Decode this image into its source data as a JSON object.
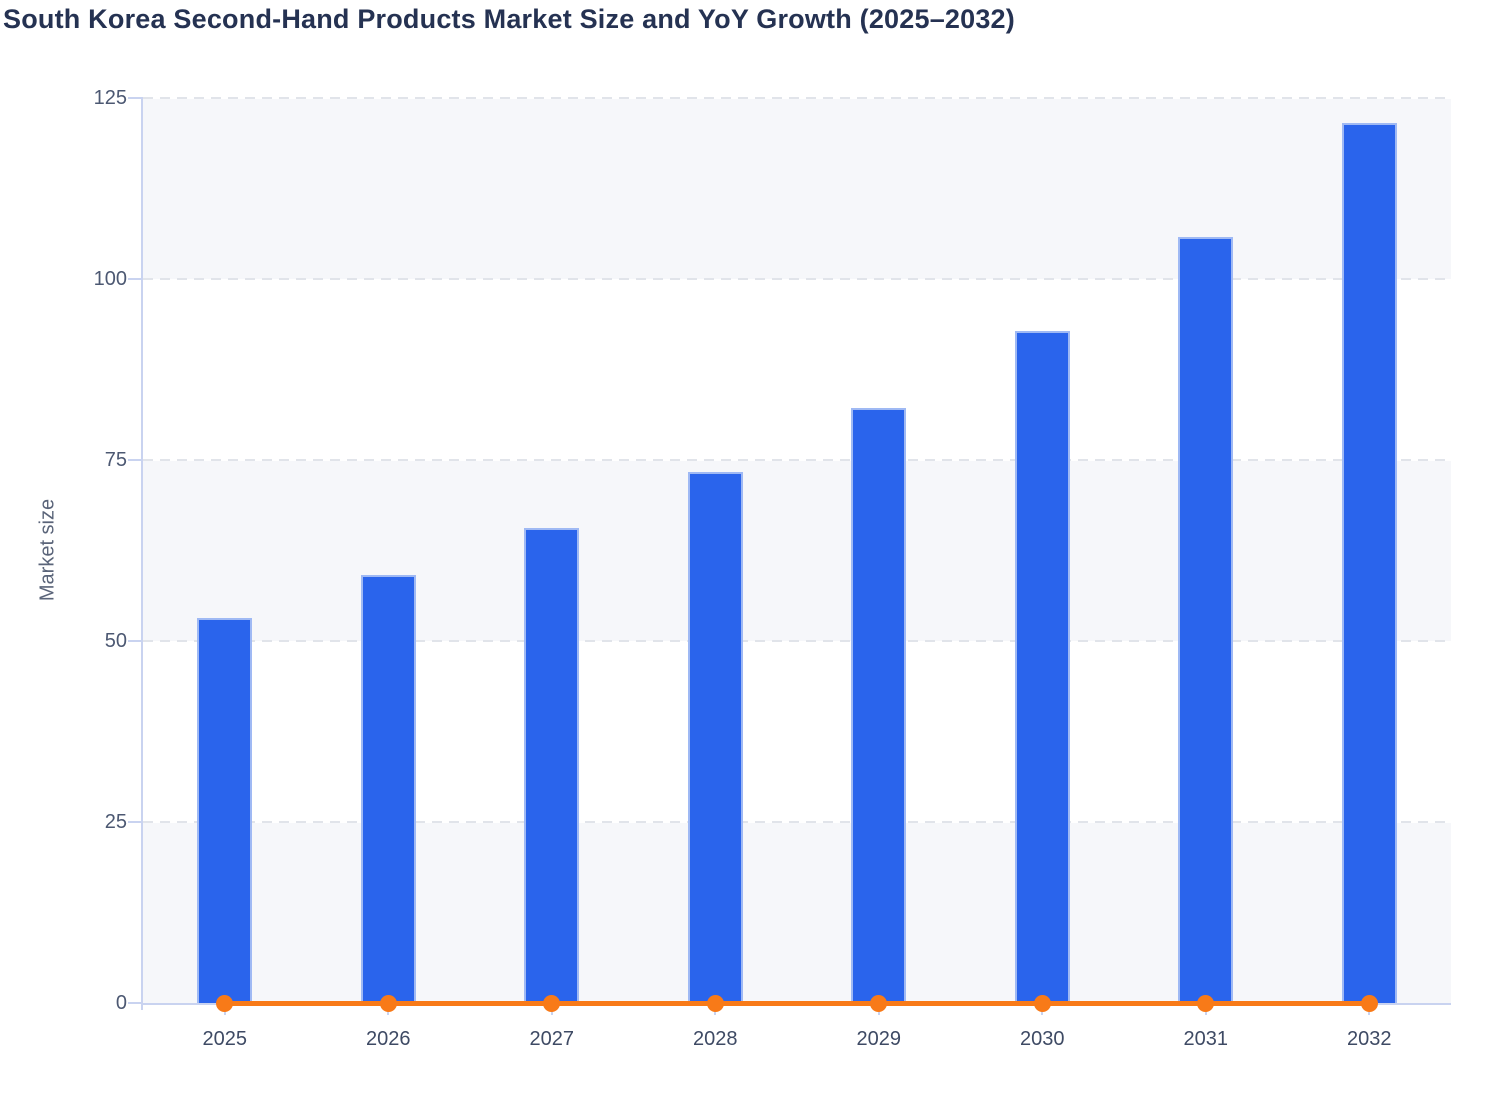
{
  "chart_data": {
    "type": "bar+line",
    "title": "South Korea Second-Hand Products Market Size and YoY Growth (2025–2032)",
    "categories": [
      "2025",
      "2026",
      "2027",
      "2028",
      "2029",
      "2030",
      "2031",
      "2032"
    ],
    "series": [
      {
        "name": "Market size",
        "type": "bar",
        "values": [
          53.2,
          59.1,
          65.6,
          73.3,
          82.2,
          92.8,
          105.8,
          121.5
        ]
      },
      {
        "name": "YoY growth",
        "type": "line",
        "values": [
          0,
          0,
          0,
          0,
          0,
          0,
          0,
          0
        ]
      }
    ],
    "xlabel": "",
    "ylabel": "Market size",
    "ylim": [
      0,
      125
    ],
    "yticks": [
      0,
      25,
      50,
      75,
      100,
      125
    ],
    "grid": "horizontal-dashed",
    "band_fill": "alternating-rows",
    "legend_position": "none",
    "colors": {
      "bar_fill": "#2a64ec",
      "bar_border": "#9fb9f4",
      "line": "#f87a18",
      "axis": "#c9d3f0",
      "gridline": "#e1e4ea",
      "band": "#f6f7fa",
      "title_text": "#253252",
      "y_tick_text": "#4c5872",
      "x_tick_text": "#3e4a64",
      "axis_title_text": "#5a6479",
      "background": "#ffffff"
    }
  }
}
